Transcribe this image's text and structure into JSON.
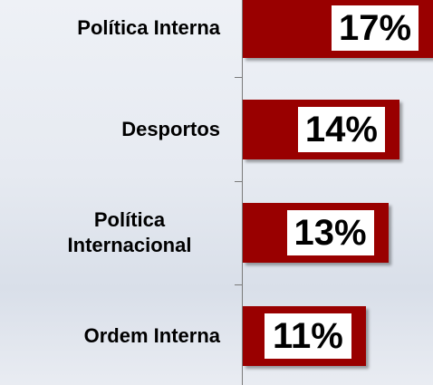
{
  "chart_data": {
    "type": "bar",
    "orientation": "horizontal",
    "categories": [
      "Política Interna",
      "Desportos",
      "Política Internacional",
      "Ordem Interna"
    ],
    "values": [
      17,
      14,
      13,
      11
    ],
    "value_labels": [
      "17%",
      "14%",
      "13%",
      "11%"
    ],
    "color": "#990000",
    "xlim": [
      0,
      17
    ]
  }
}
